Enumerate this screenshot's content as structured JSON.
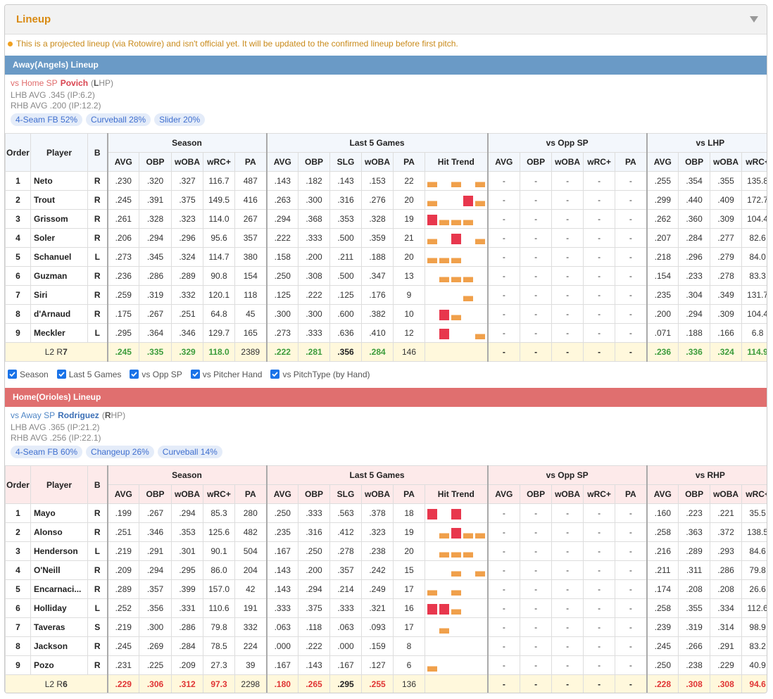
{
  "header": {
    "title": "Lineup"
  },
  "notice": "This is a projected lineup (via Rotowire) and isn't official yet. It will be updated to the confirmed lineup before first pitch.",
  "columns": {
    "order": "Order",
    "player": "Player",
    "bats": "B",
    "season": [
      "AVG",
      "OBP",
      "wOBA",
      "wRC+",
      "PA"
    ],
    "last5": [
      "AVG",
      "OBP",
      "SLG",
      "wOBA",
      "PA",
      "Hit Trend"
    ],
    "opp": [
      "AVG",
      "OBP",
      "wOBA",
      "wRC+",
      "PA"
    ],
    "hand": [
      "AVG",
      "OBP",
      "wOBA",
      "wRC+"
    ]
  },
  "hit_trend_colors": [
    "#f0a04b",
    "#e8374d"
  ],
  "toggles": [
    "Season",
    "Last 5 Games",
    "vs Opp SP",
    "vs Pitcher Hand",
    "vs PitchType (by Hand)"
  ],
  "teams": [
    {
      "title": "Away(Angels) Lineup",
      "bar_color": "#6a9ac6",
      "sp_color": "#e06c6c",
      "sp_name_color": "#d9434f",
      "header_bg": "#f3f7fc",
      "total_color": "#3c9c3c",
      "sp_prefix": "vs Home SP",
      "sp_name": "Povich",
      "sp_hand": [
        "(",
        "L",
        "HP)"
      ],
      "lhb": "LHB AVG .345 (IP:6.2)",
      "rhb": "RHB AVG .200 (IP:12.2)",
      "pitches": [
        "4-Seam FB 52%",
        "Curveball 28%",
        "Slider 20%"
      ],
      "groups": [
        "Season",
        "Last 5 Games",
        "vs Opp SP",
        "vs LHP"
      ],
      "rows": [
        {
          "cells": [
            "1",
            "Neto",
            "R",
            ".230",
            ".320",
            ".327",
            "116.7",
            "487",
            ".143",
            ".182",
            ".143",
            ".153",
            "22",
            "-",
            "-",
            "-",
            "-",
            "-",
            ".255",
            ".354",
            ".355",
            "135.8"
          ],
          "hit_trend": [
            1,
            0,
            1,
            0,
            1
          ]
        },
        {
          "cells": [
            "2",
            "Trout",
            "R",
            ".245",
            ".391",
            ".375",
            "149.5",
            "416",
            ".263",
            ".300",
            ".316",
            ".276",
            "20",
            "-",
            "-",
            "-",
            "-",
            "-",
            ".299",
            ".440",
            ".409",
            "172.7"
          ],
          "hit_trend": [
            1,
            0,
            0,
            2,
            1
          ]
        },
        {
          "cells": [
            "3",
            "Grissom",
            "R",
            ".261",
            ".328",
            ".323",
            "114.0",
            "267",
            ".294",
            ".368",
            ".353",
            ".328",
            "19",
            "-",
            "-",
            "-",
            "-",
            "-",
            ".262",
            ".360",
            ".309",
            "104.4"
          ],
          "hit_trend": [
            2,
            1,
            1,
            1,
            0
          ]
        },
        {
          "cells": [
            "4",
            "Soler",
            "R",
            ".206",
            ".294",
            ".296",
            "95.6",
            "357",
            ".222",
            ".333",
            ".500",
            ".359",
            "21",
            "-",
            "-",
            "-",
            "-",
            "-",
            ".207",
            ".284",
            ".277",
            "82.6"
          ],
          "hit_trend": [
            1,
            0,
            2,
            0,
            1
          ]
        },
        {
          "cells": [
            "5",
            "Schanuel",
            "L",
            ".273",
            ".345",
            ".324",
            "114.7",
            "380",
            ".158",
            ".200",
            ".211",
            ".188",
            "20",
            "-",
            "-",
            "-",
            "-",
            "-",
            ".218",
            ".296",
            ".279",
            "84.0"
          ],
          "hit_trend": [
            1,
            1,
            1,
            0,
            0
          ]
        },
        {
          "cells": [
            "6",
            "Guzman",
            "R",
            ".236",
            ".286",
            ".289",
            "90.8",
            "154",
            ".250",
            ".308",
            ".500",
            ".347",
            "13",
            "-",
            "-",
            "-",
            "-",
            "-",
            ".154",
            ".233",
            ".278",
            "83.3"
          ],
          "hit_trend": [
            0,
            1,
            1,
            1,
            0
          ]
        },
        {
          "cells": [
            "7",
            "Siri",
            "R",
            ".259",
            ".319",
            ".332",
            "120.1",
            "118",
            ".125",
            ".222",
            ".125",
            ".176",
            "9",
            "-",
            "-",
            "-",
            "-",
            "-",
            ".235",
            ".304",
            ".349",
            "131.7"
          ],
          "hit_trend": [
            0,
            0,
            0,
            1,
            0
          ]
        },
        {
          "cells": [
            "8",
            "d'Arnaud",
            "R",
            ".175",
            ".267",
            ".251",
            "64.8",
            "45",
            ".300",
            ".300",
            ".600",
            ".382",
            "10",
            "-",
            "-",
            "-",
            "-",
            "-",
            ".200",
            ".294",
            ".309",
            "104.4"
          ],
          "hit_trend": [
            0,
            2,
            1,
            0,
            0
          ]
        },
        {
          "cells": [
            "9",
            "Meckler",
            "L",
            ".295",
            ".364",
            ".346",
            "129.7",
            "165",
            ".273",
            ".333",
            ".636",
            ".410",
            "12",
            "-",
            "-",
            "-",
            "-",
            "-",
            ".071",
            ".188",
            ".166",
            "6.8"
          ],
          "hit_trend": [
            0,
            2,
            0,
            0,
            1
          ]
        }
      ],
      "totals": {
        "label": [
          "L2 R",
          "7"
        ],
        "cells": [
          ".245",
          ".335",
          ".329",
          "118.0",
          "2389",
          ".222",
          ".281",
          ".356",
          ".284",
          "146",
          "-",
          "-",
          "-",
          "-",
          "-",
          ".236",
          ".336",
          ".324",
          "114.9"
        ]
      }
    },
    {
      "title": "Home(Orioles) Lineup",
      "bar_color": "#e06f6f",
      "sp_color": "#4f86c6",
      "sp_name_color": "#3b6fb6",
      "header_bg": "#fdeaea",
      "total_color": "#e03434",
      "sp_prefix": "vs Away SP",
      "sp_name": "Rodriguez",
      "sp_hand": [
        "(",
        "R",
        "HP)"
      ],
      "lhb": "LHB AVG .365 (IP:21.2)",
      "rhb": "RHB AVG .256 (IP:22.1)",
      "pitches": [
        "4-Seam FB 60%",
        "Changeup 26%",
        "Curveball 14%"
      ],
      "groups": [
        "Season",
        "Last 5 Games",
        "vs Opp SP",
        "vs RHP"
      ],
      "rows": [
        {
          "cells": [
            "1",
            "Mayo",
            "R",
            ".199",
            ".267",
            ".294",
            "85.3",
            "280",
            ".250",
            ".333",
            ".563",
            ".378",
            "18",
            "-",
            "-",
            "-",
            "-",
            "-",
            ".160",
            ".223",
            ".221",
            "35.5"
          ],
          "hit_trend": [
            2,
            0,
            2,
            0,
            0
          ]
        },
        {
          "cells": [
            "2",
            "Alonso",
            "R",
            ".251",
            ".346",
            ".353",
            "125.6",
            "482",
            ".235",
            ".316",
            ".412",
            ".323",
            "19",
            "-",
            "-",
            "-",
            "-",
            "-",
            ".258",
            ".363",
            ".372",
            "138.5"
          ],
          "hit_trend": [
            0,
            1,
            2,
            1,
            1
          ]
        },
        {
          "cells": [
            "3",
            "Henderson",
            "L",
            ".219",
            ".291",
            ".301",
            "90.1",
            "504",
            ".167",
            ".250",
            ".278",
            ".238",
            "20",
            "-",
            "-",
            "-",
            "-",
            "-",
            ".216",
            ".289",
            ".293",
            "84.6"
          ],
          "hit_trend": [
            0,
            1,
            1,
            1,
            0
          ]
        },
        {
          "cells": [
            "4",
            "O'Neill",
            "R",
            ".209",
            ".294",
            ".295",
            "86.0",
            "204",
            ".143",
            ".200",
            ".357",
            ".242",
            "15",
            "-",
            "-",
            "-",
            "-",
            "-",
            ".211",
            ".311",
            ".286",
            "79.8"
          ],
          "hit_trend": [
            0,
            0,
            1,
            0,
            1
          ]
        },
        {
          "cells": [
            "5",
            "Encarnaci...",
            "R",
            ".289",
            ".357",
            ".399",
            "157.0",
            "42",
            ".143",
            ".294",
            ".214",
            ".249",
            "17",
            "-",
            "-",
            "-",
            "-",
            "-",
            ".174",
            ".208",
            ".208",
            "26.6"
          ],
          "hit_trend": [
            1,
            0,
            1,
            0,
            0
          ]
        },
        {
          "cells": [
            "6",
            "Holliday",
            "L",
            ".252",
            ".356",
            ".331",
            "110.6",
            "191",
            ".333",
            ".375",
            ".333",
            ".321",
            "16",
            "-",
            "-",
            "-",
            "-",
            "-",
            ".258",
            ".355",
            ".334",
            "112.6"
          ],
          "hit_trend": [
            2,
            2,
            1,
            0,
            0
          ]
        },
        {
          "cells": [
            "7",
            "Taveras",
            "S",
            ".219",
            ".300",
            ".286",
            "79.8",
            "332",
            ".063",
            ".118",
            ".063",
            ".093",
            "17",
            "-",
            "-",
            "-",
            "-",
            "-",
            ".239",
            ".319",
            ".314",
            "98.9"
          ],
          "hit_trend": [
            0,
            1,
            0,
            0,
            0
          ]
        },
        {
          "cells": [
            "8",
            "Jackson",
            "R",
            ".245",
            ".269",
            ".284",
            "78.5",
            "224",
            ".000",
            ".222",
            ".000",
            ".159",
            "8",
            "-",
            "-",
            "-",
            "-",
            "-",
            ".245",
            ".266",
            ".291",
            "83.2"
          ],
          "hit_trend": [
            0,
            0,
            0,
            0,
            0
          ]
        },
        {
          "cells": [
            "9",
            "Pozo",
            "R",
            ".231",
            ".225",
            ".209",
            "27.3",
            "39",
            ".167",
            ".143",
            ".167",
            ".127",
            "6",
            "-",
            "-",
            "-",
            "-",
            "-",
            ".250",
            ".238",
            ".229",
            "40.9"
          ],
          "hit_trend": [
            1,
            0,
            0,
            0,
            0
          ]
        }
      ],
      "totals": {
        "label": [
          "L2 R",
          "6"
        ],
        "cells": [
          ".229",
          ".306",
          ".312",
          "97.3",
          "2298",
          ".180",
          ".265",
          ".295",
          ".255",
          "136",
          "-",
          "-",
          "-",
          "-",
          "-",
          ".228",
          ".308",
          ".308",
          "94.6"
        ]
      }
    }
  ]
}
